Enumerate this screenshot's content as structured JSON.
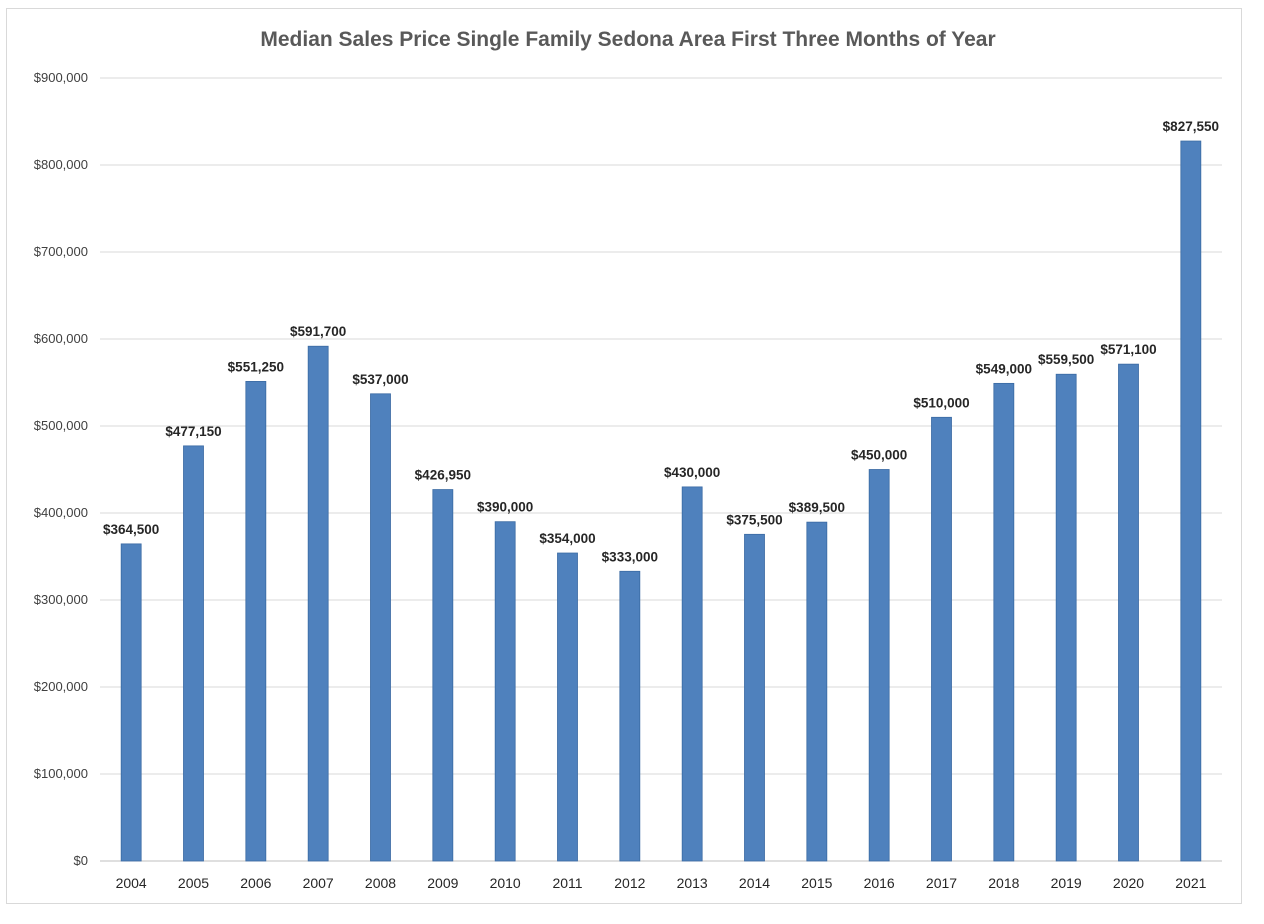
{
  "chart_data": {
    "type": "bar",
    "title": "Median Sales Price Single Family Sedona Area  First Three Months of Year",
    "xlabel": "",
    "ylabel": "",
    "categories": [
      "2004",
      "2005",
      "2006",
      "2007",
      "2008",
      "2009",
      "2010",
      "2011",
      "2012",
      "2013",
      "2014",
      "2015",
      "2016",
      "2017",
      "2018",
      "2019",
      "2020",
      "2021"
    ],
    "values": [
      364500,
      477150,
      551250,
      591700,
      537000,
      426950,
      390000,
      354000,
      333000,
      430000,
      375500,
      389500,
      450000,
      510000,
      549000,
      559500,
      571100,
      827550
    ],
    "data_labels": [
      "$364,500",
      "$477,150",
      "$551,250",
      "$591,700",
      "$537,000",
      "$426,950",
      "$390,000",
      "$354,000",
      "$333,000",
      "$430,000",
      "$375,500",
      "$389,500",
      "$450,000",
      "$510,000",
      "$549,000",
      "$559,500",
      "$571,100",
      "$827,550"
    ],
    "ylim": [
      0,
      900000
    ],
    "y_ticks": [
      0,
      100000,
      200000,
      300000,
      400000,
      500000,
      600000,
      700000,
      800000,
      900000
    ],
    "y_tick_labels": [
      "$0",
      "$100,000",
      "$200,000",
      "$300,000",
      "$400,000",
      "$500,000",
      "$600,000",
      "$700,000",
      "$800,000",
      "$900,000"
    ],
    "grid": true,
    "legend": "none",
    "bar_color": "#4f81bd",
    "bar_edge_color": "#3a6aa3",
    "grid_color": "#d9d9d9"
  }
}
